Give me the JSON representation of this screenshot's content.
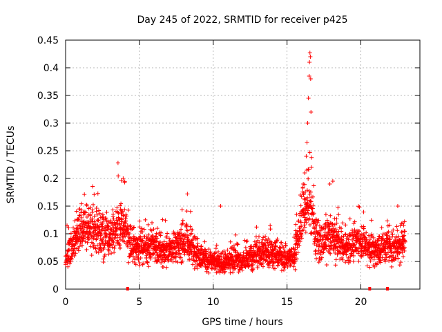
{
  "chart_data": {
    "type": "scatter",
    "title": "Day 245 of 2022, SRMTID for receiver p425",
    "xlabel": "GPS time / hours",
    "ylabel": "SRMTID / TECUs",
    "xlim": [
      0,
      24
    ],
    "ylim": [
      0,
      0.45
    ],
    "xticks": [
      0,
      5,
      10,
      15,
      20
    ],
    "xtick_labels": [
      "0",
      "5",
      "10",
      "15",
      "20"
    ],
    "yticks": [
      0,
      0.05,
      0.1,
      0.15,
      0.2,
      0.25,
      0.3,
      0.35,
      0.4,
      0.45
    ],
    "ytick_labels": [
      "0",
      "0.05",
      "0.1",
      "0.15",
      "0.2",
      "0.25",
      "0.3",
      "0.35",
      "0.4",
      "0.45"
    ],
    "grid": true,
    "marker": "plus",
    "color": "#ff0000",
    "zero_markers_x": [
      4.2,
      20.6,
      21.8
    ],
    "series": [
      {
        "name": "SRMTID",
        "baseline_profile": {
          "x": [
            0.0,
            0.5,
            1.0,
            1.5,
            2.0,
            2.5,
            3.0,
            3.5,
            4.0,
            4.5,
            5.0,
            5.5,
            6.0,
            6.5,
            7.0,
            7.5,
            8.0,
            8.5,
            9.0,
            9.5,
            10.0,
            10.5,
            11.0,
            11.5,
            12.0,
            12.5,
            13.0,
            13.5,
            14.0,
            14.5,
            15.0,
            15.5,
            16.0,
            16.5,
            17.0,
            17.5,
            18.0,
            18.5,
            19.0,
            19.5,
            20.0,
            20.5,
            21.0,
            21.5,
            22.0,
            22.5,
            23.0
          ],
          "y": [
            0.06,
            0.08,
            0.11,
            0.11,
            0.105,
            0.1,
            0.095,
            0.12,
            0.11,
            0.075,
            0.08,
            0.075,
            0.08,
            0.07,
            0.07,
            0.08,
            0.085,
            0.08,
            0.06,
            0.055,
            0.05,
            0.045,
            0.05,
            0.055,
            0.05,
            0.055,
            0.065,
            0.07,
            0.065,
            0.06,
            0.055,
            0.06,
            0.13,
            0.16,
            0.09,
            0.085,
            0.1,
            0.08,
            0.075,
            0.085,
            0.09,
            0.075,
            0.07,
            0.075,
            0.075,
            0.08,
            0.085
          ]
        },
        "peak_points": [
          {
            "x": 3.55,
            "y": 0.228
          },
          {
            "x": 3.9,
            "y": 0.2
          },
          {
            "x": 4.0,
            "y": 0.193
          },
          {
            "x": 8.25,
            "y": 0.172
          },
          {
            "x": 10.5,
            "y": 0.15
          },
          {
            "x": 15.9,
            "y": 0.17
          },
          {
            "x": 16.1,
            "y": 0.19
          },
          {
            "x": 16.2,
            "y": 0.21
          },
          {
            "x": 16.3,
            "y": 0.24
          },
          {
            "x": 16.35,
            "y": 0.265
          },
          {
            "x": 16.4,
            "y": 0.3
          },
          {
            "x": 16.45,
            "y": 0.345
          },
          {
            "x": 16.5,
            "y": 0.385
          },
          {
            "x": 16.52,
            "y": 0.41
          },
          {
            "x": 16.55,
            "y": 0.427
          },
          {
            "x": 16.58,
            "y": 0.42
          },
          {
            "x": 16.6,
            "y": 0.38
          },
          {
            "x": 16.62,
            "y": 0.32
          },
          {
            "x": 16.65,
            "y": 0.22
          },
          {
            "x": 17.9,
            "y": 0.19
          },
          {
            "x": 18.1,
            "y": 0.195
          },
          {
            "x": 22.5,
            "y": 0.15
          }
        ]
      }
    ]
  }
}
